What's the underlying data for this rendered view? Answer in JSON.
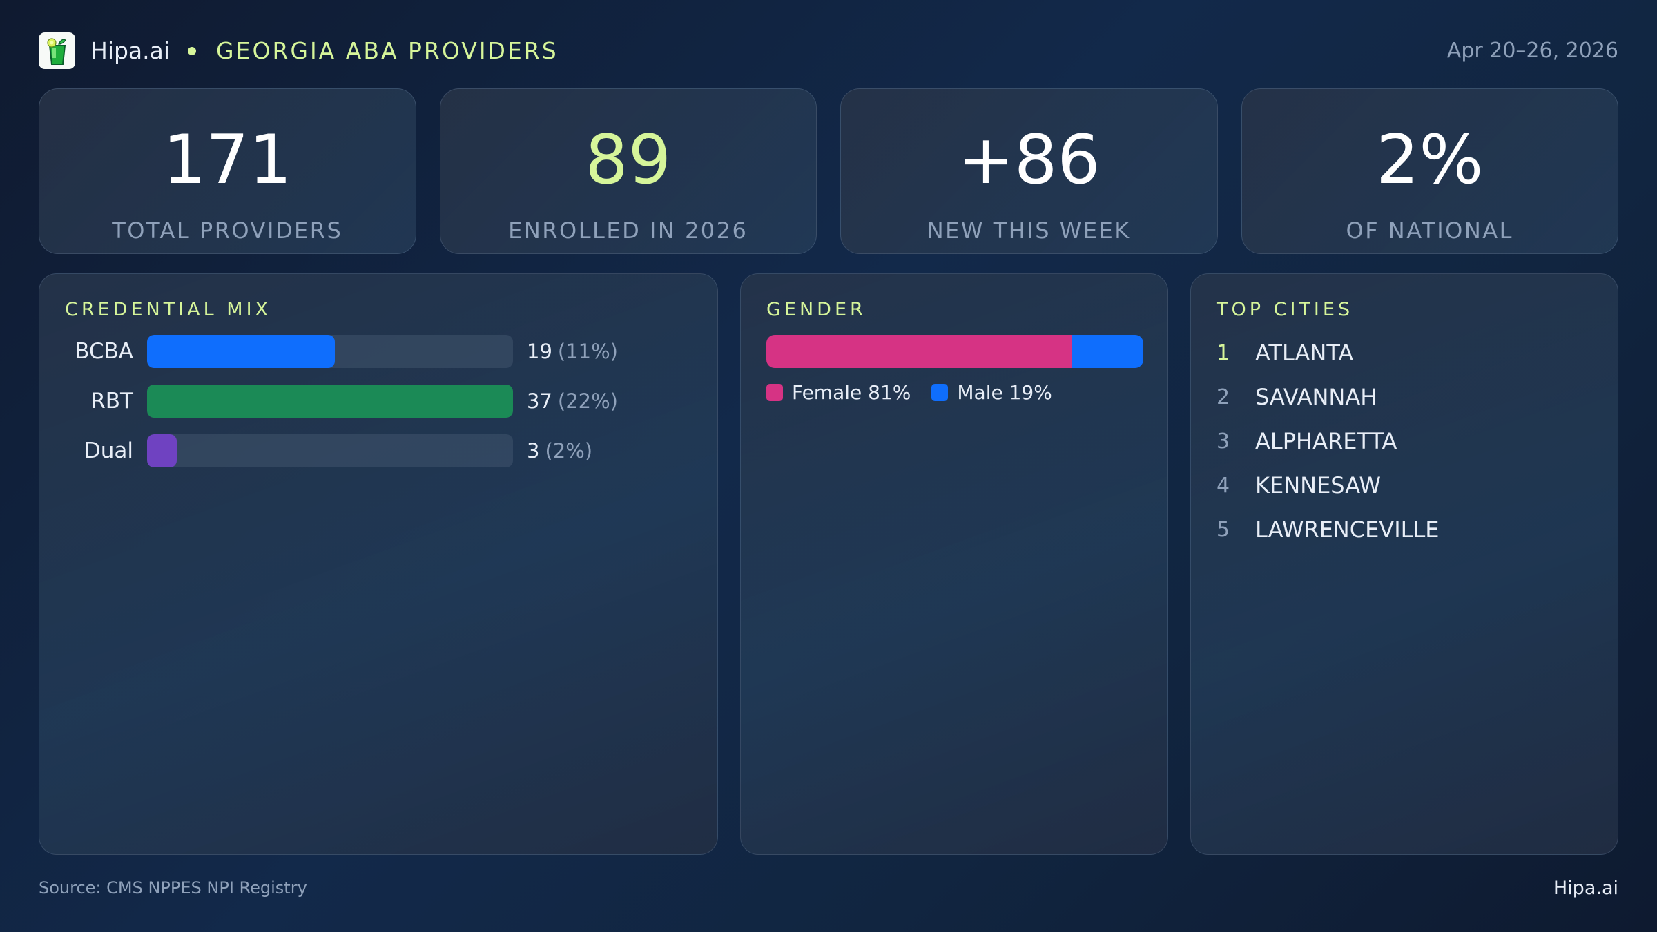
{
  "header": {
    "brand": "Hipa.ai",
    "title": "GEORGIA ABA PROVIDERS",
    "date_range": "Apr 20–26, 2026",
    "logo_icon": "mojito-glass-icon"
  },
  "kpis": [
    {
      "value": "171",
      "label": "TOTAL PROVIDERS",
      "accent": false
    },
    {
      "value": "89",
      "label": "ENROLLED IN 2026",
      "accent": true
    },
    {
      "value": "+86",
      "label": "NEW THIS WEEK",
      "accent": false
    },
    {
      "value": "2%",
      "label": "OF NATIONAL",
      "accent": false
    }
  ],
  "credential_mix": {
    "title": "CREDENTIAL MIX",
    "rows": [
      {
        "label": "BCBA",
        "count": "19",
        "pct": "(11%)",
        "fill_pct": 51.4,
        "color": "#0f6efd"
      },
      {
        "label": "RBT",
        "count": "37",
        "pct": "(22%)",
        "fill_pct": 100,
        "color": "#1b8a56"
      },
      {
        "label": "Dual",
        "count": "3",
        "pct": "(2%)",
        "fill_pct": 8.1,
        "color": "#6f42c1"
      }
    ]
  },
  "gender": {
    "title": "GENDER",
    "segments": [
      {
        "label": "Female 81%",
        "pct": 81,
        "color": "#d63384"
      },
      {
        "label": "Male 19%",
        "pct": 19,
        "color": "#0f6efd"
      }
    ]
  },
  "top_cities": {
    "title": "TOP CITIES",
    "items": [
      {
        "rank": "1",
        "name": "ATLANTA"
      },
      {
        "rank": "2",
        "name": "SAVANNAH"
      },
      {
        "rank": "3",
        "name": "ALPHARETTA"
      },
      {
        "rank": "4",
        "name": "KENNESAW"
      },
      {
        "rank": "5",
        "name": "LAWRENCEVILLE"
      }
    ]
  },
  "footer": {
    "source": "Source: CMS NPPES NPI Registry",
    "brand": "Hipa.ai"
  },
  "colors": {
    "accent": "#d6f59a",
    "muted": "#8fa1ba",
    "bcba": "#0f6efd",
    "rbt": "#1b8a56",
    "dual": "#6f42c1",
    "female": "#d63384",
    "male": "#0f6efd"
  },
  "chart_data": [
    {
      "type": "bar",
      "title": "CREDENTIAL MIX",
      "orientation": "horizontal",
      "categories": [
        "BCBA",
        "RBT",
        "Dual"
      ],
      "values": [
        19,
        37,
        3
      ],
      "percent_labels": [
        "11%",
        "22%",
        "2%"
      ],
      "xlabel": "",
      "ylabel": ""
    },
    {
      "type": "bar",
      "title": "GENDER",
      "orientation": "horizontal-stacked",
      "categories": [
        "Female",
        "Male"
      ],
      "values": [
        81,
        19
      ],
      "unit": "%"
    }
  ]
}
